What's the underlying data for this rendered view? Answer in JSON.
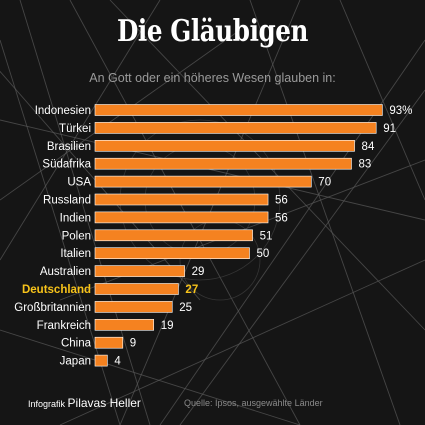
{
  "title": "Die Gläubigen",
  "subtitle": "An Gott oder ein höheres Wesen glauben in:",
  "credit_prefix": "Infografik",
  "credit_name": "Pilavas Heller",
  "source": "Quelle: Ipsos, ausgewählte Länder",
  "colors": {
    "bar": "#f58220",
    "highlight_label": "#f7c31a",
    "text": "#ffffff",
    "background": "#151515"
  },
  "chart_data": {
    "type": "bar",
    "orientation": "horizontal",
    "unit": "%",
    "categories": [
      "Indonesien",
      "Türkei",
      "Brasilien",
      "Südafrika",
      "USA",
      "Russland",
      "Indien",
      "Polen",
      "Italien",
      "Australien",
      "Deutschland",
      "Großbritannien",
      "Frankreich",
      "China",
      "Japan"
    ],
    "values": [
      93,
      91,
      84,
      83,
      70,
      56,
      56,
      51,
      50,
      29,
      27,
      25,
      19,
      9,
      4
    ],
    "value_labels": [
      "93%",
      "91",
      "84",
      "83",
      "70",
      "56",
      "56",
      "51",
      "50",
      "29",
      "27",
      "25",
      "19",
      "9",
      "4"
    ],
    "highlight": "Deutschland",
    "xlim": [
      0,
      100
    ],
    "grid": false,
    "legend": "none"
  }
}
